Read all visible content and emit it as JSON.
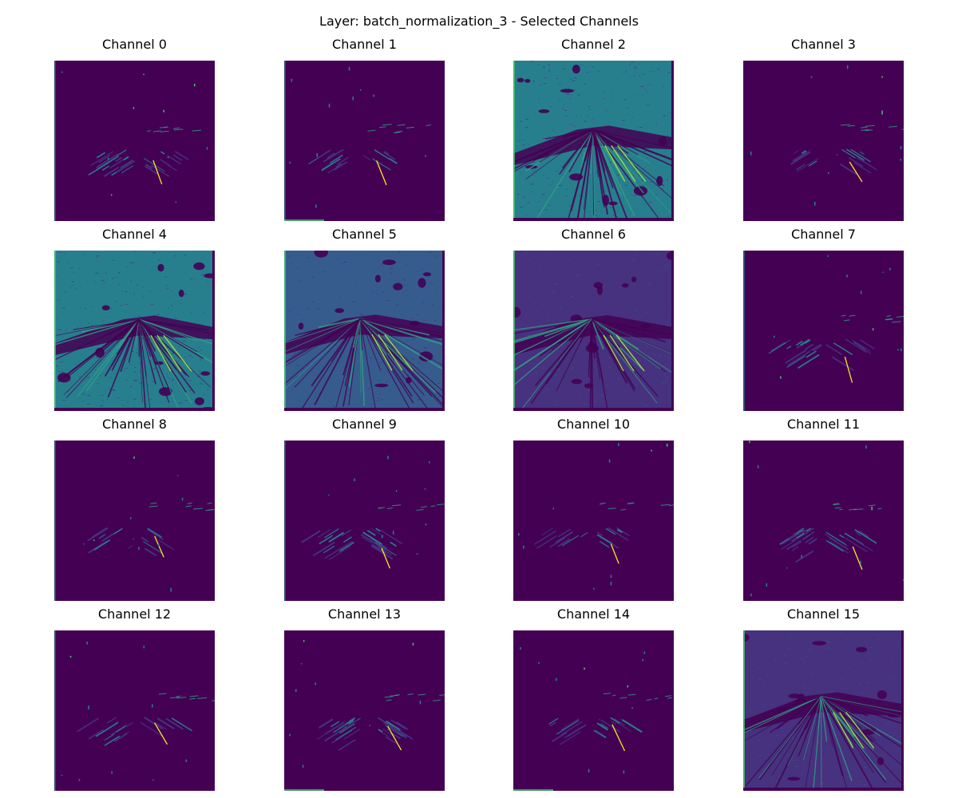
{
  "figure": {
    "title": "Layer: batch_normalization_3 - Selected Channels"
  },
  "colors": {
    "background": "#440154",
    "dark_purple": "#46327e",
    "indigo": "#3b528b",
    "blue": "#365c8d",
    "teal": "#277f8e",
    "light_teal": "#31a187",
    "green": "#4ac16d",
    "lime": "#a0da39",
    "yellow": "#fde725"
  },
  "channels": [
    {
      "label": "Channel 0",
      "style": "sparse"
    },
    {
      "label": "Channel 1",
      "style": "sparse"
    },
    {
      "label": "Channel 2",
      "style": "dense-teal"
    },
    {
      "label": "Channel 3",
      "style": "sparse"
    },
    {
      "label": "Channel 4",
      "style": "dense-teal"
    },
    {
      "label": "Channel 5",
      "style": "dense-blue"
    },
    {
      "label": "Channel 6",
      "style": "medium"
    },
    {
      "label": "Channel 7",
      "style": "sparse"
    },
    {
      "label": "Channel 8",
      "style": "sparse"
    },
    {
      "label": "Channel 9",
      "style": "sparse"
    },
    {
      "label": "Channel 10",
      "style": "sparse"
    },
    {
      "label": "Channel 11",
      "style": "sparse"
    },
    {
      "label": "Channel 12",
      "style": "sparse"
    },
    {
      "label": "Channel 13",
      "style": "sparse"
    },
    {
      "label": "Channel 14",
      "style": "sparse"
    },
    {
      "label": "Channel 15",
      "style": "medium"
    }
  ]
}
